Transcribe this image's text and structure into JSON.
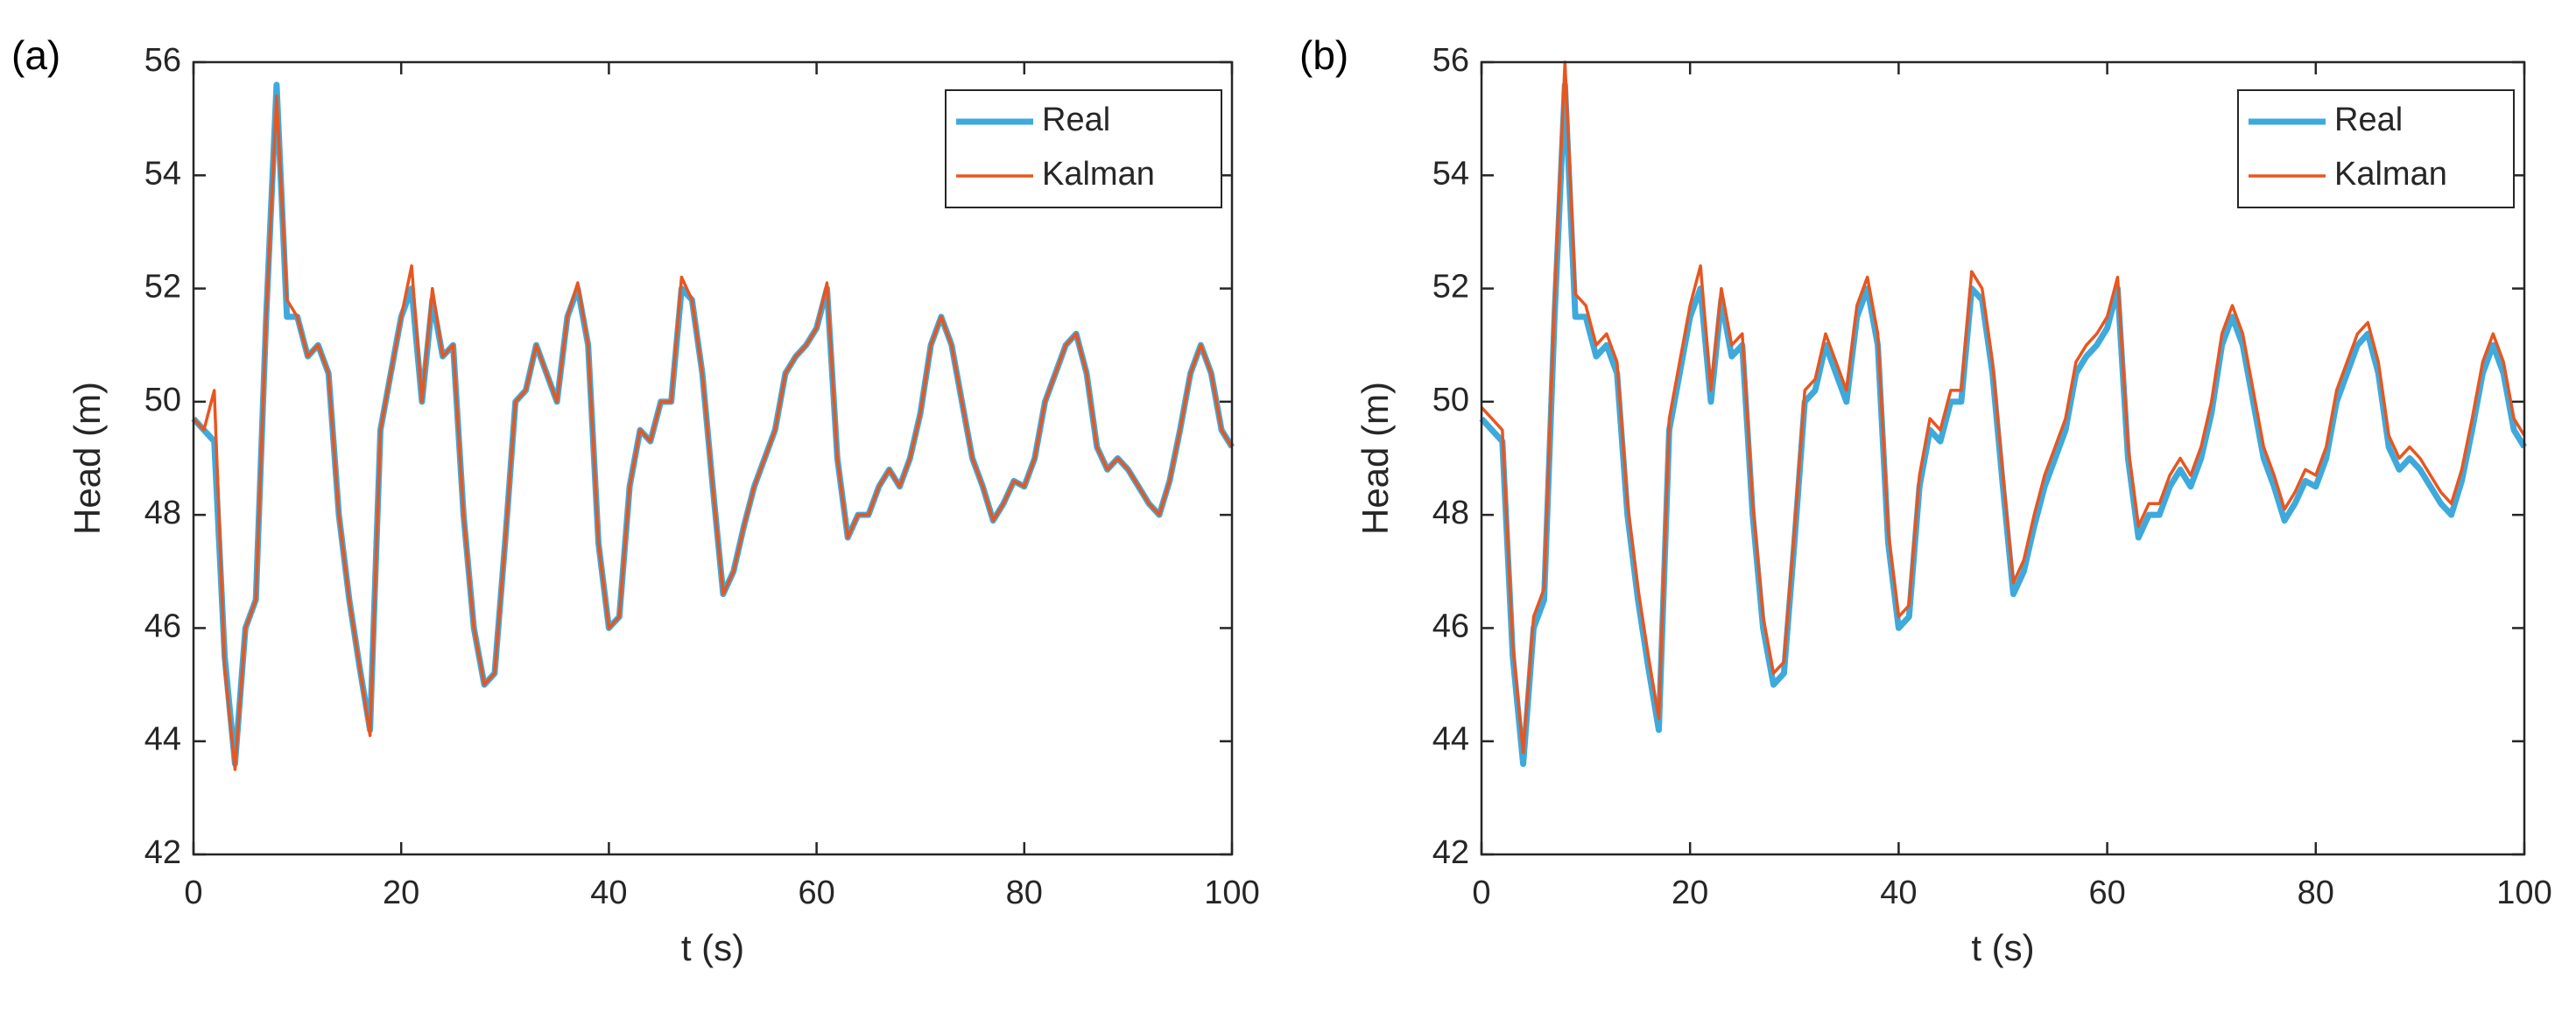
{
  "chart_data": [
    {
      "type": "line",
      "panel_label": "(a)",
      "xlabel": "t (s)",
      "ylabel": "Head (m)",
      "xlim": [
        0,
        100
      ],
      "xticks": [
        0,
        20,
        40,
        60,
        80,
        100
      ],
      "ylim": [
        42,
        56
      ],
      "yticks": [
        42,
        44,
        46,
        48,
        50,
        52,
        54,
        56
      ],
      "legend": "upper right",
      "x": [
        0,
        1,
        2,
        3,
        4,
        5,
        6,
        7,
        8,
        9,
        10,
        11,
        12,
        13,
        14,
        15,
        16,
        17,
        18,
        19,
        20,
        21,
        22,
        23,
        24,
        25,
        26,
        27,
        28,
        29,
        30,
        31,
        32,
        33,
        34,
        35,
        36,
        37,
        38,
        39,
        40,
        41,
        42,
        43,
        44,
        45,
        46,
        47,
        48,
        49,
        50,
        51,
        52,
        53,
        54,
        55,
        56,
        57,
        58,
        59,
        60,
        61,
        62,
        63,
        64,
        65,
        66,
        67,
        68,
        69,
        70,
        71,
        72,
        73,
        74,
        75,
        76,
        77,
        78,
        79,
        80,
        81,
        82,
        83,
        84,
        85,
        86,
        87,
        88,
        89,
        90,
        91,
        92,
        93,
        94,
        95,
        96,
        97,
        98,
        99,
        100
      ],
      "series": [
        {
          "name": "Real",
          "color": "#3fa9dc",
          "values": [
            49.7,
            49.5,
            49.3,
            45.5,
            43.6,
            46.0,
            46.5,
            51.5,
            55.6,
            51.5,
            51.5,
            50.8,
            51.0,
            50.5,
            48.0,
            46.5,
            45.3,
            44.2,
            49.5,
            50.5,
            51.5,
            52.0,
            50.0,
            51.8,
            50.8,
            51.0,
            48.0,
            46.0,
            45.0,
            45.2,
            47.5,
            50.0,
            50.2,
            51.0,
            50.5,
            50.0,
            51.5,
            52.0,
            51.0,
            47.5,
            46.0,
            46.2,
            48.5,
            49.5,
            49.3,
            50.0,
            50.0,
            52.0,
            51.8,
            50.5,
            48.5,
            46.6,
            47.0,
            47.8,
            48.5,
            49.0,
            49.5,
            50.5,
            50.8,
            51.0,
            51.3,
            52.0,
            49.0,
            47.6,
            48.0,
            48.0,
            48.5,
            48.8,
            48.5,
            49.0,
            49.8,
            51.0,
            51.5,
            51.0,
            50.0,
            49.0,
            48.5,
            47.9,
            48.2,
            48.6,
            48.5,
            49.0,
            50.0,
            50.5,
            51.0,
            51.2,
            50.5,
            49.2,
            48.8,
            49.0,
            48.8,
            48.5,
            48.2,
            48.0,
            48.6,
            49.5,
            50.5,
            51.0,
            50.5,
            49.5,
            49.2
          ]
        },
        {
          "name": "Kalman",
          "color": "#e8561f",
          "values": [
            49.7,
            49.5,
            50.2,
            45.3,
            43.5,
            46.0,
            46.5,
            51.5,
            55.4,
            51.8,
            51.5,
            50.8,
            51.0,
            50.5,
            48.0,
            46.5,
            45.3,
            44.1,
            49.5,
            50.5,
            51.5,
            52.4,
            50.0,
            52.0,
            50.8,
            51.0,
            48.0,
            46.0,
            45.0,
            45.2,
            47.5,
            50.0,
            50.2,
            51.0,
            50.5,
            50.0,
            51.5,
            52.1,
            51.0,
            47.5,
            46.0,
            46.2,
            48.5,
            49.5,
            49.3,
            50.0,
            50.0,
            52.2,
            51.8,
            50.5,
            48.5,
            46.6,
            47.0,
            47.8,
            48.5,
            49.0,
            49.5,
            50.5,
            50.8,
            51.0,
            51.3,
            52.1,
            49.0,
            47.6,
            48.0,
            48.0,
            48.5,
            48.8,
            48.5,
            49.0,
            49.8,
            51.0,
            51.5,
            51.0,
            50.0,
            49.0,
            48.5,
            47.9,
            48.2,
            48.6,
            48.5,
            49.0,
            50.0,
            50.5,
            51.0,
            51.2,
            50.5,
            49.2,
            48.8,
            49.0,
            48.8,
            48.5,
            48.2,
            48.0,
            48.6,
            49.5,
            50.5,
            51.0,
            50.5,
            49.5,
            49.2
          ]
        }
      ]
    },
    {
      "type": "line",
      "panel_label": "(b)",
      "xlabel": "t (s)",
      "ylabel": "Head (m)",
      "xlim": [
        0,
        100
      ],
      "xticks": [
        0,
        20,
        40,
        60,
        80,
        100
      ],
      "ylim": [
        42,
        56
      ],
      "yticks": [
        42,
        44,
        46,
        48,
        50,
        52,
        54,
        56
      ],
      "legend": "upper right",
      "x": [
        0,
        1,
        2,
        3,
        4,
        5,
        6,
        7,
        8,
        9,
        10,
        11,
        12,
        13,
        14,
        15,
        16,
        17,
        18,
        19,
        20,
        21,
        22,
        23,
        24,
        25,
        26,
        27,
        28,
        29,
        30,
        31,
        32,
        33,
        34,
        35,
        36,
        37,
        38,
        39,
        40,
        41,
        42,
        43,
        44,
        45,
        46,
        47,
        48,
        49,
        50,
        51,
        52,
        53,
        54,
        55,
        56,
        57,
        58,
        59,
        60,
        61,
        62,
        63,
        64,
        65,
        66,
        67,
        68,
        69,
        70,
        71,
        72,
        73,
        74,
        75,
        76,
        77,
        78,
        79,
        80,
        81,
        82,
        83,
        84,
        85,
        86,
        87,
        88,
        89,
        90,
        91,
        92,
        93,
        94,
        95,
        96,
        97,
        98,
        99,
        100
      ],
      "series": [
        {
          "name": "Real",
          "color": "#3fa9dc",
          "values": [
            49.7,
            49.5,
            49.3,
            45.5,
            43.6,
            46.0,
            46.5,
            51.5,
            55.6,
            51.5,
            51.5,
            50.8,
            51.0,
            50.5,
            48.0,
            46.5,
            45.3,
            44.2,
            49.5,
            50.5,
            51.5,
            52.0,
            50.0,
            51.8,
            50.8,
            51.0,
            48.0,
            46.0,
            45.0,
            45.2,
            47.5,
            50.0,
            50.2,
            51.0,
            50.5,
            50.0,
            51.5,
            52.0,
            51.0,
            47.5,
            46.0,
            46.2,
            48.5,
            49.5,
            49.3,
            50.0,
            50.0,
            52.0,
            51.8,
            50.5,
            48.5,
            46.6,
            47.0,
            47.8,
            48.5,
            49.0,
            49.5,
            50.5,
            50.8,
            51.0,
            51.3,
            52.0,
            49.0,
            47.6,
            48.0,
            48.0,
            48.5,
            48.8,
            48.5,
            49.0,
            49.8,
            51.0,
            51.5,
            51.0,
            50.0,
            49.0,
            48.5,
            47.9,
            48.2,
            48.6,
            48.5,
            49.0,
            50.0,
            50.5,
            51.0,
            51.2,
            50.5,
            49.2,
            48.8,
            49.0,
            48.8,
            48.5,
            48.2,
            48.0,
            48.6,
            49.5,
            50.5,
            51.0,
            50.5,
            49.5,
            49.2
          ]
        },
        {
          "name": "Kalman",
          "color": "#e8561f",
          "values": [
            49.9,
            49.7,
            49.5,
            45.7,
            43.8,
            46.2,
            46.7,
            51.8,
            56.0,
            51.9,
            51.7,
            51.0,
            51.2,
            50.7,
            48.2,
            46.7,
            45.5,
            44.4,
            49.7,
            50.7,
            51.7,
            52.4,
            50.2,
            52.0,
            51.0,
            51.2,
            48.2,
            46.2,
            45.2,
            45.4,
            47.7,
            50.2,
            50.4,
            51.2,
            50.7,
            50.2,
            51.7,
            52.2,
            51.2,
            47.7,
            46.2,
            46.4,
            48.7,
            49.7,
            49.5,
            50.2,
            50.2,
            52.3,
            52.0,
            50.7,
            48.7,
            46.8,
            47.2,
            48.0,
            48.7,
            49.2,
            49.7,
            50.7,
            51.0,
            51.2,
            51.5,
            52.2,
            49.2,
            47.8,
            48.2,
            48.2,
            48.7,
            49.0,
            48.7,
            49.2,
            50.0,
            51.2,
            51.7,
            51.2,
            50.2,
            49.2,
            48.7,
            48.1,
            48.4,
            48.8,
            48.7,
            49.2,
            50.2,
            50.7,
            51.2,
            51.4,
            50.7,
            49.4,
            49.0,
            49.2,
            49.0,
            48.7,
            48.4,
            48.2,
            48.8,
            49.7,
            50.7,
            51.2,
            50.7,
            49.7,
            49.4
          ]
        }
      ]
    }
  ]
}
